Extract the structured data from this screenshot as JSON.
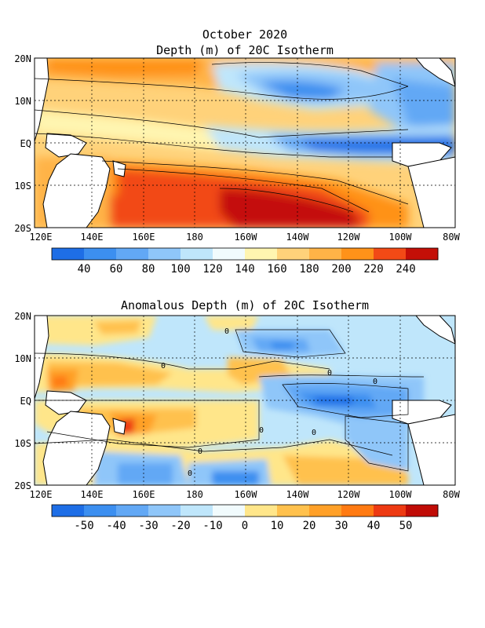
{
  "chart_data": [
    {
      "type": "heatmap",
      "title": "October 2020",
      "subtitle": "Depth (m) of 20C Isotherm",
      "x_ticks": [
        "120E",
        "140E",
        "160E",
        "180",
        "160W",
        "140W",
        "120W",
        "100W",
        "80W"
      ],
      "y_ticks": [
        "20N",
        "10N",
        "EQ",
        "10S",
        "20S"
      ],
      "lon_range": [
        118,
        282
      ],
      "lat_range": [
        -20,
        20
      ],
      "colorbar_ticks": [
        "40",
        "60",
        "80",
        "100",
        "120",
        "140",
        "160",
        "180",
        "200",
        "220",
        "240"
      ],
      "colorbar_colors": [
        "#1e6ee6",
        "#3c8ff0",
        "#62a8f5",
        "#8fc6f9",
        "#bfe6fb",
        "#f1fbfd",
        "#fff5b0",
        "#ffd27a",
        "#ffb347",
        "#ff9219",
        "#f24a16",
        "#c40f07"
      ],
      "field_description": "thermocline deepest in western Pacific south of equator (>240 m near 160W-130W, 15S), shallowest in eastern equatorial Pacific (<40 m)"
    },
    {
      "type": "heatmap",
      "title": "Anomalous Depth (m) of 20C Isotherm",
      "x_ticks": [
        "120E",
        "140E",
        "160E",
        "180",
        "160W",
        "140W",
        "120W",
        "100W",
        "80W"
      ],
      "y_ticks": [
        "20N",
        "10N",
        "EQ",
        "10S",
        "20S"
      ],
      "lon_range": [
        118,
        282
      ],
      "lat_range": [
        -20,
        20
      ],
      "colorbar_ticks": [
        "-50",
        "-40",
        "-30",
        "-20",
        "-10",
        "0",
        "10",
        "20",
        "30",
        "40",
        "50"
      ],
      "colorbar_colors": [
        "#1e6ee6",
        "#3c8ff0",
        "#62a8f5",
        "#8fc6f9",
        "#bfe6fb",
        "#f1fbfd",
        "#ffe68a",
        "#ffc14d",
        "#ffa028",
        "#ff7a12",
        "#ed3a12",
        "#c00c06"
      ],
      "contour_label": "0",
      "field_description": "shallow (negative) anomalies in central-eastern equatorial Pacific near 140W-110W EQ, deep (positive) anomalies in western Pacific near 130E 5N and 150E 5S"
    }
  ]
}
